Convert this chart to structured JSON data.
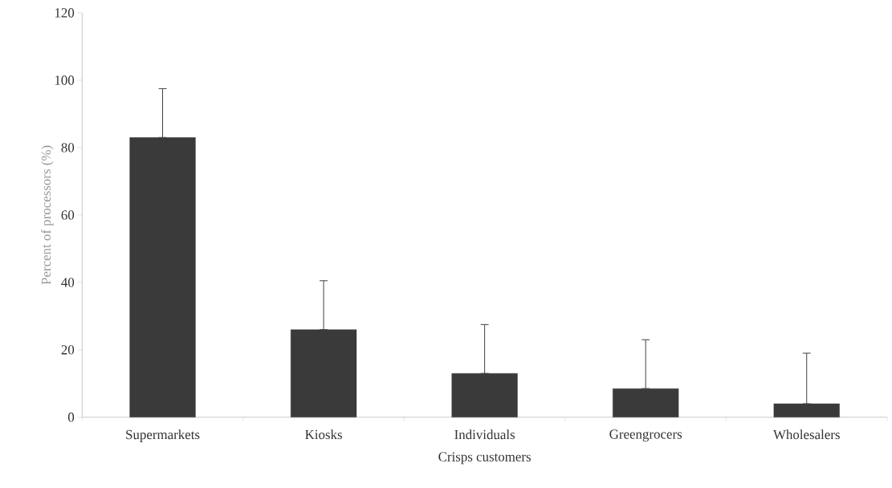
{
  "chart_data": {
    "type": "bar",
    "xlabel": "Crisps customers",
    "ylabel": "Percent of processors (%)",
    "categories": [
      "Supermarkets",
      "Kiosks",
      "Individuals",
      "Greengrocers",
      "Wholesalers"
    ],
    "values": [
      83,
      26,
      13,
      8.5,
      4
    ],
    "errors": [
      [
        83,
        97.5
      ],
      [
        26,
        40.5
      ],
      [
        13,
        27.5
      ],
      [
        8.5,
        23
      ],
      [
        4,
        19
      ]
    ],
    "color": "#3a3a3a",
    "ylim": [
      0,
      120
    ],
    "yticks": [
      0,
      20,
      40,
      60,
      80,
      100,
      120
    ]
  }
}
